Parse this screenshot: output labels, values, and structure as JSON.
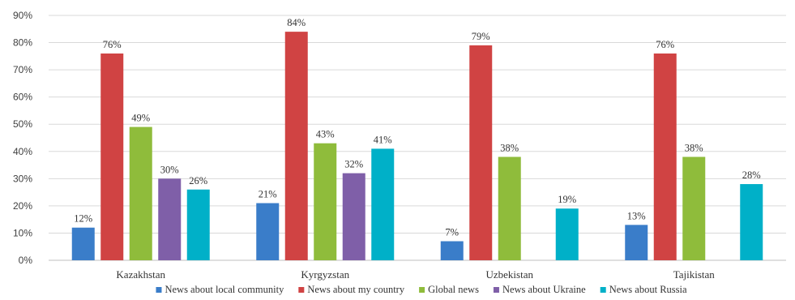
{
  "chart_data": {
    "type": "bar",
    "categories": [
      "Kazakhstan",
      "Kyrgyzstan",
      "Uzbekistan",
      "Tajikistan"
    ],
    "series": [
      {
        "name": "News about local community",
        "color": "#3a7dc9",
        "values": [
          12,
          21,
          7,
          13
        ]
      },
      {
        "name": "News about my country",
        "color": "#d04343",
        "values": [
          76,
          84,
          79,
          76
        ]
      },
      {
        "name": "Global news",
        "color": "#8fbc3b",
        "values": [
          49,
          43,
          38,
          38
        ]
      },
      {
        "name": "News about Ukraine",
        "color": "#7f5fa8",
        "values": [
          30,
          32,
          null,
          null
        ]
      },
      {
        "name": "News about Russia",
        "color": "#00b0c8",
        "values": [
          26,
          41,
          19,
          28
        ]
      }
    ],
    "ylim": [
      0,
      90
    ],
    "yticks": [
      0,
      10,
      20,
      30,
      40,
      50,
      60,
      70,
      80,
      90
    ],
    "ytick_suffix": "%",
    "data_label_suffix": "%",
    "grid": true,
    "legend": "bottom"
  }
}
